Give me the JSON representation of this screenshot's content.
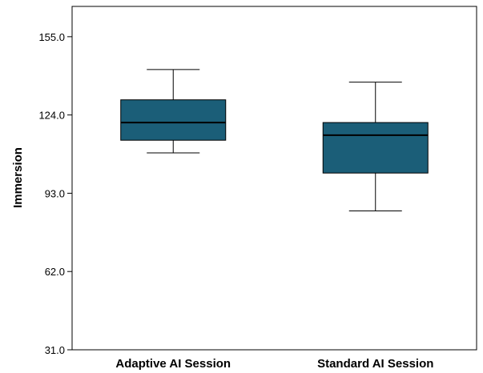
{
  "chart_data": {
    "type": "boxplot",
    "title": "",
    "xlabel": "",
    "ylabel": "Immersion",
    "ylim": [
      31.0,
      167.0
    ],
    "yticks": [
      "31.0",
      "62.0",
      "93.0",
      "124.0",
      "155.0"
    ],
    "grid": false,
    "legend": "none",
    "box_color": "#1b5e78",
    "median_color": "#000000",
    "categories": [
      "Adaptive AI Session",
      "Standard AI Session"
    ],
    "boxes": [
      {
        "category": "Adaptive AI Session",
        "whisker_low": 109.0,
        "q1": 114.0,
        "median": 121.0,
        "q3": 130.0,
        "whisker_high": 142.0
      },
      {
        "category": "Standard AI Session",
        "whisker_low": 86.0,
        "q1": 101.0,
        "median": 116.0,
        "q3": 121.0,
        "whisker_high": 137.0
      }
    ]
  }
}
